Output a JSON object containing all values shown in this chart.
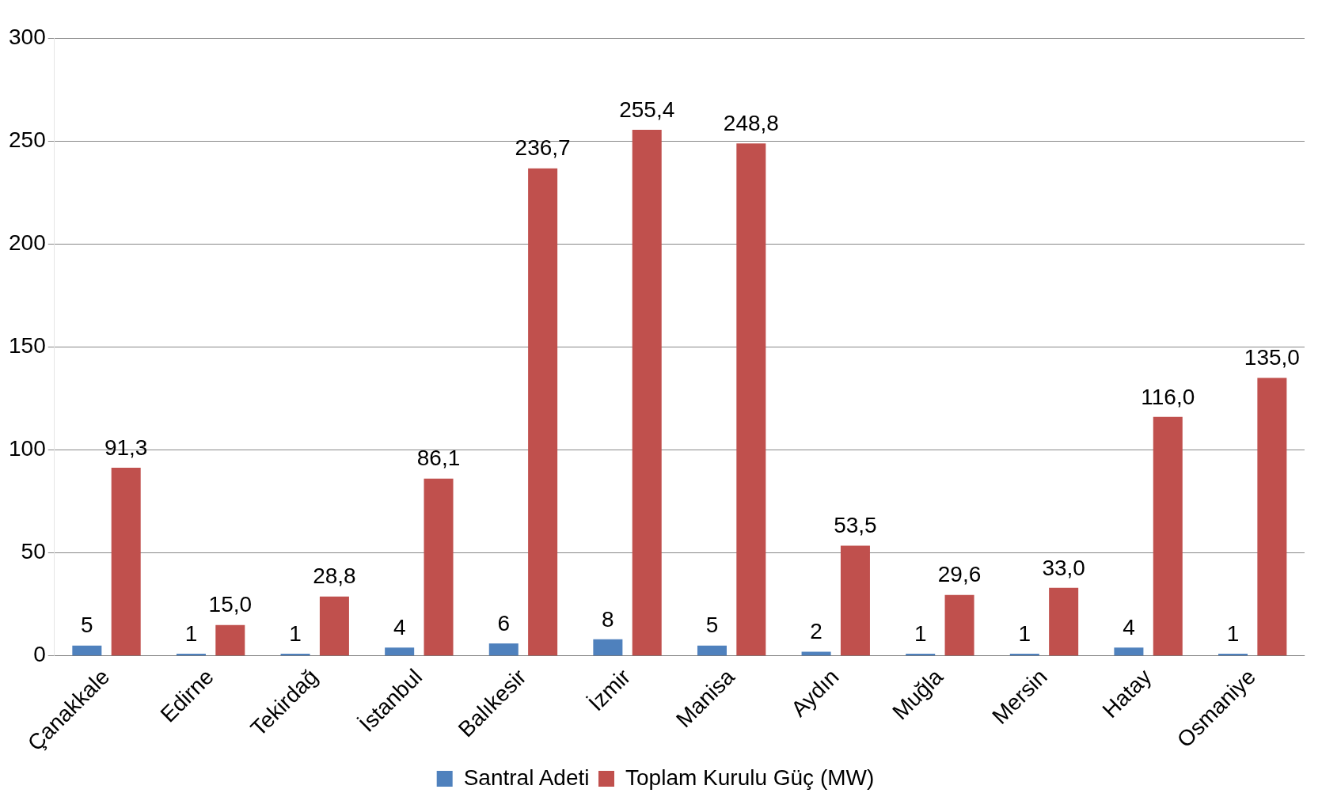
{
  "chart_data": {
    "type": "bar",
    "categories": [
      "Çanakkale",
      "Edirne",
      "Tekirdağ",
      "İstanbul",
      "Balıkesir",
      "İzmir",
      "Manisa",
      "Aydın",
      "Muğla",
      "Mersin",
      "Hatay",
      "Osmaniye"
    ],
    "series": [
      {
        "name": "Santral Adeti",
        "color": "#4f81bd",
        "values": [
          5,
          1,
          1,
          4,
          6,
          8,
          5,
          2,
          1,
          1,
          4,
          1
        ],
        "value_labels": [
          "5",
          "1",
          "1",
          "4",
          "6",
          "8",
          "5",
          "2",
          "1",
          "1",
          "4",
          "1"
        ]
      },
      {
        "name": "Toplam Kurulu Güç (MW)",
        "color": "#c0504d",
        "values": [
          91.3,
          15.0,
          28.8,
          86.1,
          236.7,
          255.4,
          248.8,
          53.5,
          29.6,
          33.0,
          116.0,
          135.0
        ],
        "value_labels": [
          "91,3",
          "15,0",
          "28,8",
          "86,1",
          "236,7",
          "255,4",
          "248,8",
          "53,5",
          "29,6",
          "33,0",
          "116,0",
          "135,0"
        ]
      }
    ],
    "ylim": [
      0,
      300
    ],
    "yticks": [
      0,
      50,
      100,
      150,
      200,
      250,
      300
    ],
    "grid": "y",
    "legend": "bottom"
  }
}
